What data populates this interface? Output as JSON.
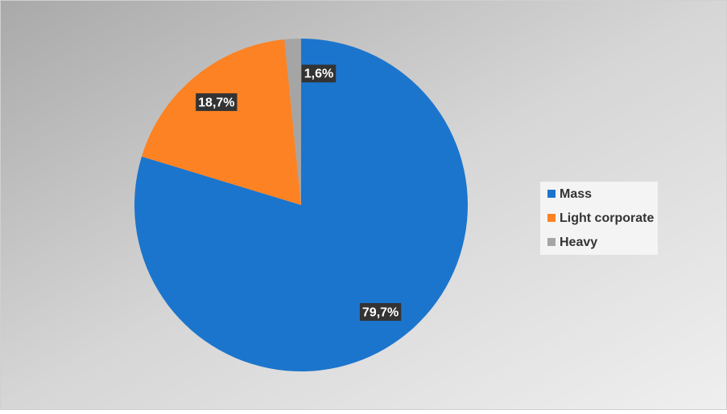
{
  "chart_data": {
    "type": "pie",
    "categories": [
      "Mass",
      "Light corporate",
      "Heavy"
    ],
    "values": [
      79.7,
      18.7,
      1.6
    ],
    "value_labels": [
      "79,7%",
      "18,7%",
      "1,6%"
    ],
    "colors": [
      "#1c75cc",
      "#fd8223",
      "#a5a5a5"
    ],
    "legend": "right"
  }
}
